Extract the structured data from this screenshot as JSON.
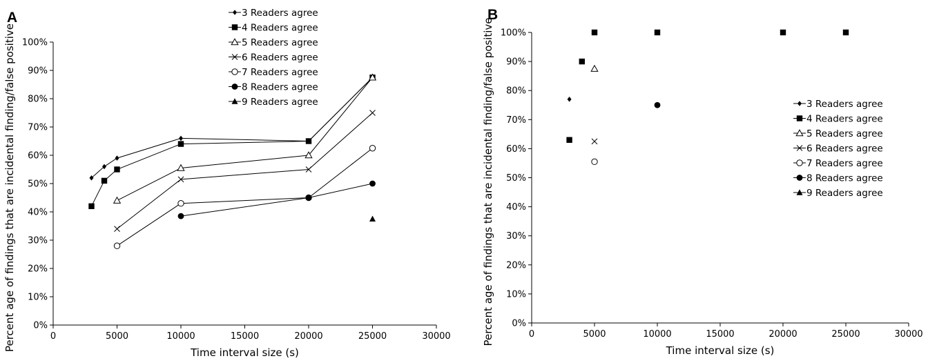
{
  "chart_data": [
    {
      "panel_label": "A",
      "type": "line",
      "xlabel": "Time interval size (s)",
      "ylabel": "Percent age of findings that are incidental finding/false positive",
      "xlim": [
        0,
        30000
      ],
      "ylim": [
        0,
        100
      ],
      "x_ticks": [
        "0",
        "5000",
        "10000",
        "15000",
        "20000",
        "25000",
        "30000"
      ],
      "y_ticks": [
        "0%",
        "10%",
        "20%",
        "30%",
        "40%",
        "50%",
        "60%",
        "70%",
        "80%",
        "90%",
        "100%"
      ],
      "legend_position": "top-center",
      "series": [
        {
          "name": "3 Readers agree",
          "marker": "diamond-filled",
          "x": [
            3000,
            4000,
            5000,
            10000,
            20000,
            25000
          ],
          "y": [
            52,
            56,
            59,
            66,
            65,
            87.5
          ]
        },
        {
          "name": "4 Readers agree",
          "marker": "square-filled",
          "x": [
            3000,
            4000,
            5000,
            10000,
            20000,
            25000
          ],
          "y": [
            42,
            51,
            55,
            64,
            65,
            87.5
          ]
        },
        {
          "name": "5 Readers agree",
          "marker": "triangle-open",
          "x": [
            5000,
            10000,
            20000,
            25000
          ],
          "y": [
            44,
            55.5,
            60,
            87.5
          ]
        },
        {
          "name": "6 Readers agree",
          "marker": "x",
          "x": [
            5000,
            10000,
            20000,
            25000
          ],
          "y": [
            34,
            51.5,
            55,
            75
          ]
        },
        {
          "name": "7 Readers agree",
          "marker": "circle-open",
          "x": [
            5000,
            10000,
            20000,
            25000
          ],
          "y": [
            28,
            43,
            45,
            62.5
          ]
        },
        {
          "name": "8 Readers agree",
          "marker": "circle-filled",
          "x": [
            10000,
            20000,
            25000
          ],
          "y": [
            38.5,
            45,
            50
          ]
        },
        {
          "name": "9 Readers agree",
          "marker": "triangle-filled",
          "x": [
            25000
          ],
          "y": [
            37.5
          ]
        }
      ]
    },
    {
      "panel_label": "B",
      "type": "scatter",
      "xlabel": "Time interval size (s)",
      "ylabel": "Percent age of findings that are incidental finding/false positive",
      "xlim": [
        0,
        30000
      ],
      "ylim": [
        0,
        100
      ],
      "x_ticks": [
        "0",
        "5000",
        "10000",
        "15000",
        "20000",
        "25000",
        "30000"
      ],
      "y_ticks": [
        "0%",
        "10%",
        "20%",
        "30%",
        "40%",
        "50%",
        "60%",
        "70%",
        "80%",
        "90%",
        "100%"
      ],
      "legend_position": "right",
      "series": [
        {
          "name": "3 Readers agree",
          "marker": "diamond-filled",
          "x": [
            3000
          ],
          "y": [
            77
          ]
        },
        {
          "name": "4 Readers agree",
          "marker": "square-filled",
          "x": [
            3000,
            4000,
            5000,
            10000,
            20000,
            25000
          ],
          "y": [
            63,
            90,
            100,
            100,
            100,
            100
          ]
        },
        {
          "name": "5 Readers agree",
          "marker": "triangle-open",
          "x": [
            5000
          ],
          "y": [
            87.5
          ]
        },
        {
          "name": "6 Readers agree",
          "marker": "x",
          "x": [
            5000
          ],
          "y": [
            62.5
          ]
        },
        {
          "name": "7 Readers agree",
          "marker": "circle-open",
          "x": [
            5000
          ],
          "y": [
            55.5
          ]
        },
        {
          "name": "8 Readers agree",
          "marker": "circle-filled",
          "x": [
            10000
          ],
          "y": [
            75
          ]
        },
        {
          "name": "9 Readers agree",
          "marker": "triangle-filled",
          "x": [],
          "y": []
        }
      ]
    }
  ]
}
